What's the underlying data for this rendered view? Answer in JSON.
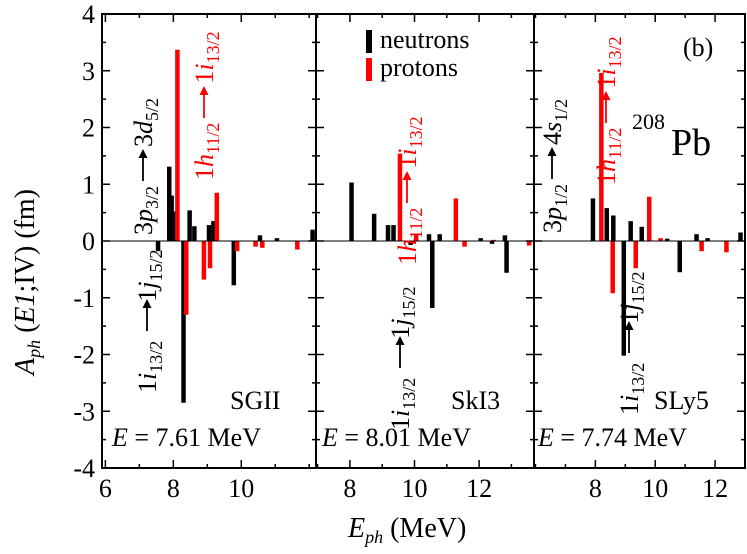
{
  "chart_data": {
    "type": "bar",
    "series_legend": [
      {
        "name": "neutrons",
        "color": "#000000"
      },
      {
        "name": "protons",
        "color": "#ff0000"
      }
    ],
    "panel_tag": "(b)",
    "nucleus": {
      "mass": "208",
      "symbol": "Pb"
    },
    "ylabel": "A_ph (E1;IV) (fm)",
    "xlabel": "E_ph (MeV)",
    "ylim": [
      -4,
      4
    ],
    "yticks": [
      -4,
      -3,
      -2,
      -1,
      0,
      1,
      2,
      3,
      4
    ],
    "panels": [
      {
        "name": "SGII",
        "energy_label": "E = 7.61 MeV",
        "xlim": [
          5.9,
          12.2
        ],
        "xticks": [
          6,
          8,
          10
        ],
        "neutrons": [
          [
            7.55,
            -0.18
          ],
          [
            7.88,
            1.31
          ],
          [
            7.95,
            0.8
          ],
          [
            8.02,
            0.52
          ],
          [
            8.3,
            -2.85
          ],
          [
            8.48,
            0.54
          ],
          [
            8.62,
            0.26
          ],
          [
            9.05,
            0.28
          ],
          [
            9.18,
            0.35
          ],
          [
            9.78,
            -0.78
          ],
          [
            10.55,
            0.1
          ],
          [
            11.05,
            0.05
          ],
          [
            12.1,
            0.2
          ]
        ],
        "protons": [
          [
            8.12,
            3.37
          ],
          [
            8.38,
            -1.3
          ],
          [
            8.9,
            -0.68
          ],
          [
            9.08,
            -0.48
          ],
          [
            9.28,
            0.85
          ],
          [
            9.88,
            -0.18
          ],
          [
            10.42,
            -0.1
          ],
          [
            10.62,
            -0.12
          ],
          [
            11.65,
            -0.15
          ]
        ]
      },
      {
        "name": "SkI3",
        "energy_label": "E = 8.01 MeV",
        "xlim": [
          6.95,
          13.7
        ],
        "xticks": [
          8,
          10,
          12
        ],
        "neutrons": [
          [
            8.05,
            1.03
          ],
          [
            8.75,
            0.48
          ],
          [
            9.18,
            0.28
          ],
          [
            9.35,
            0.28
          ],
          [
            9.88,
            -0.07
          ],
          [
            10.05,
            0.05
          ],
          [
            10.45,
            0.12
          ],
          [
            10.55,
            -1.18
          ],
          [
            10.78,
            0.12
          ],
          [
            12.05,
            0.05
          ],
          [
            12.4,
            -0.05
          ],
          [
            12.8,
            0.1
          ],
          [
            12.85,
            -0.56
          ]
        ],
        "protons": [
          [
            9.55,
            1.54
          ],
          [
            10.05,
            0.12
          ],
          [
            11.28,
            0.75
          ],
          [
            11.55,
            -0.1
          ],
          [
            12.45,
            0.02
          ],
          [
            13.55,
            -0.08
          ]
        ]
      },
      {
        "name": "SLy5",
        "energy_label": "E = 7.74 MeV",
        "xlim": [
          5.95,
          13.0
        ],
        "xticks": [
          8,
          10,
          12
        ],
        "neutrons": [
          [
            7.92,
            0.75
          ],
          [
            8.38,
            0.58
          ],
          [
            8.6,
            0.45
          ],
          [
            8.95,
            -2.02
          ],
          [
            9.18,
            0.35
          ],
          [
            9.35,
            -0.35
          ],
          [
            9.55,
            0.25
          ],
          [
            10.4,
            0.04
          ],
          [
            10.82,
            -0.55
          ],
          [
            11.38,
            0.12
          ],
          [
            11.75,
            0.05
          ],
          [
            12.85,
            0.15
          ]
        ],
        "protons": [
          [
            8.2,
            2.96
          ],
          [
            8.58,
            -0.92
          ],
          [
            9.35,
            -0.48
          ],
          [
            9.8,
            0.78
          ],
          [
            10.18,
            0.05
          ],
          [
            11.55,
            -0.18
          ],
          [
            12.38,
            -0.2
          ]
        ]
      }
    ],
    "transitions": [
      {
        "panel": 0,
        "from": "3p",
        "from_sub": "3/2",
        "to": "3d",
        "to_sub": "5/2",
        "color": "black",
        "text": "3p3/2 → 3d5/2"
      },
      {
        "panel": 0,
        "from": "1h",
        "from_sub": "11/2",
        "to": "1i",
        "to_sub": "13/2",
        "color": "red",
        "text": "1h11/2 → 1i13/2"
      },
      {
        "panel": 0,
        "from": "1i",
        "from_sub": "13/2",
        "to": "1j",
        "to_sub": "15/2",
        "color": "black",
        "text": "1i13/2 → 1j15/2"
      },
      {
        "panel": 1,
        "from": "1h",
        "from_sub": "11/2",
        "to": "1i",
        "to_sub": "13/2",
        "color": "red",
        "text": "1h11/2 → 1i13/2"
      },
      {
        "panel": 1,
        "from": "1i",
        "from_sub": "13/2",
        "to": "1j",
        "to_sub": "15/2",
        "color": "black",
        "text": "1i13/2 → 1j15/2"
      },
      {
        "panel": 2,
        "from": "3p",
        "from_sub": "1/2",
        "to": "4s",
        "to_sub": "1/2",
        "color": "black",
        "text": "3p1/2 → 4s1/2"
      },
      {
        "panel": 2,
        "from": "1h",
        "from_sub": "11/2",
        "to": "1i",
        "to_sub": "13/2",
        "color": "red",
        "text": "1h11/2 → 1i13/2"
      },
      {
        "panel": 2,
        "from": "1i",
        "from_sub": "13/2",
        "to": "1j",
        "to_sub": "15/2",
        "color": "black",
        "text": "1i13/2 → 1j15/2"
      }
    ]
  }
}
